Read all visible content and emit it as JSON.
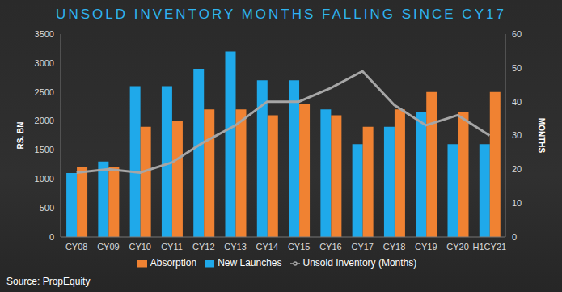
{
  "chart_data": {
    "type": "bar",
    "title": "UNSOLD INVENTORY MONTHS FALLING SINCE CY17",
    "source": "Source: PropEquity",
    "y_label": "RS. BN",
    "y2_label": "MONTHS",
    "categories": [
      "CY08",
      "CY09",
      "CY10",
      "CY11",
      "CY12",
      "CY13",
      "CY14",
      "CY15",
      "CY16",
      "CY17",
      "CY18",
      "CY19",
      "CY20",
      "H1CY21"
    ],
    "series": [
      {
        "name": "New Launches",
        "type": "bar",
        "color": "#1fa9ea",
        "values": [
          1100,
          1300,
          2600,
          2600,
          2900,
          3200,
          2700,
          2700,
          2200,
          1600,
          1900,
          2150,
          1600,
          1600
        ]
      },
      {
        "name": "Absorption",
        "type": "bar",
        "color": "#f08232",
        "values": [
          1200,
          1200,
          1900,
          2000,
          2200,
          2200,
          2100,
          2300,
          2100,
          1900,
          2200,
          2500,
          2150,
          2500
        ]
      },
      {
        "name": "Unsold Inventory (Months)",
        "type": "line",
        "axis": "y2",
        "color": "#a6a6a6",
        "marker": "none",
        "values": [
          19,
          20,
          19,
          22,
          28,
          33,
          40,
          40,
          44,
          49,
          39,
          33,
          36,
          30
        ]
      }
    ],
    "ylim": [
      0,
      3500
    ],
    "yticks": [
      0,
      500,
      1000,
      1500,
      2000,
      2500,
      3000,
      3500
    ],
    "y2lim": [
      0,
      60
    ],
    "y2ticks": [
      0,
      10,
      20,
      30,
      40,
      50,
      60
    ],
    "grid": false,
    "legend": "bottom"
  }
}
